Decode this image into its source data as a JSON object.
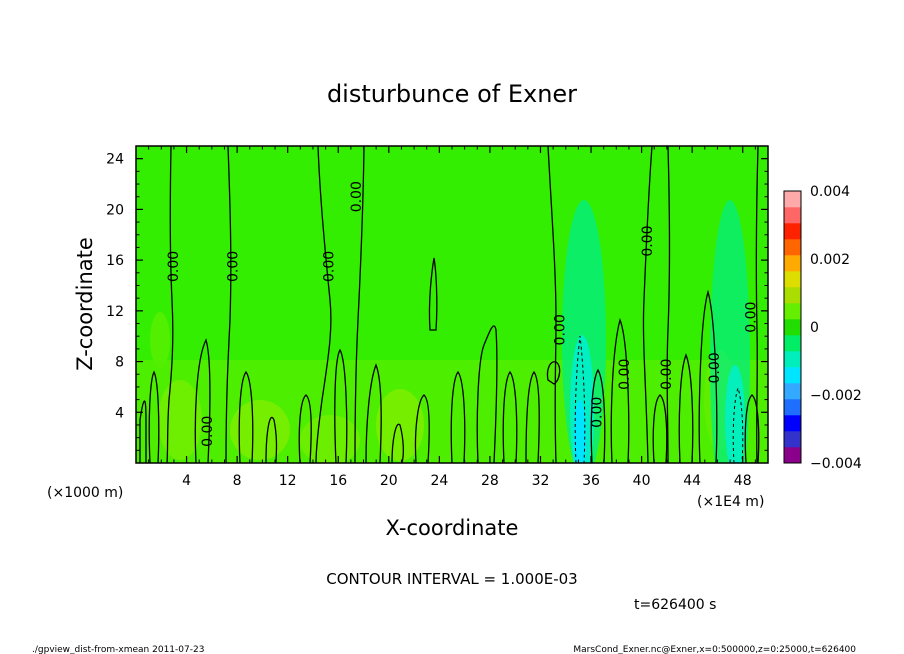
{
  "chart_data": {
    "type": "heatmap",
    "title": "disturbunce of Exner",
    "xlabel": "X-coordinate",
    "ylabel": "Z-coordinate",
    "xlim": [
      0,
      50
    ],
    "ylim": [
      0,
      25
    ],
    "x_ticks": [
      4,
      8,
      12,
      16,
      20,
      24,
      28,
      32,
      36,
      40,
      44,
      48
    ],
    "y_ticks": [
      4,
      8,
      12,
      16,
      20,
      24
    ],
    "x_unit_left": "(×1000 m)",
    "x_unit_right": "(×1E4 m)",
    "colorbar": {
      "range": [
        -0.004,
        0.004
      ],
      "tick_labels": [
        "0.004",
        "0.002",
        "0",
        "−0.002",
        "−0.004"
      ],
      "tick_values": [
        0.004,
        0.002,
        0,
        -0.002,
        -0.004
      ],
      "colors": [
        "#8b008b",
        "#3333cc",
        "#0000ff",
        "#1e6fff",
        "#33aaff",
        "#00e5ff",
        "#00eebb",
        "#00ee66",
        "#22dd00",
        "#66ee00",
        "#aadd00",
        "#dddd00",
        "#ffaa00",
        "#ff6600",
        "#ff2200",
        "#ff6666",
        "#ffaaaa"
      ]
    },
    "contour_interval_text": "CONTOUR INTERVAL = 1.000E-03",
    "contour_labels": [
      {
        "text": "0.00",
        "x": 3.0,
        "z": 15.5
      },
      {
        "text": "0.00",
        "x": 7.7,
        "z": 15.5
      },
      {
        "text": "0.00",
        "x": 15.3,
        "z": 15.5
      },
      {
        "text": "0.00",
        "x": 17.5,
        "z": 21.0
      },
      {
        "text": "0.00",
        "x": 5.7,
        "z": 2.5
      },
      {
        "text": "0.00",
        "x": 33.6,
        "z": 10.5
      },
      {
        "text": "0.00",
        "x": 36.5,
        "z": 4.0
      },
      {
        "text": "0.00",
        "x": 38.7,
        "z": 7.0
      },
      {
        "text": "0.00",
        "x": 40.5,
        "z": 17.5
      },
      {
        "text": "0.00",
        "x": 42.0,
        "z": 7.0
      },
      {
        "text": "0.00",
        "x": 45.8,
        "z": 7.5
      },
      {
        "text": "0.00",
        "x": 48.7,
        "z": 11.5
      }
    ],
    "time_label": "t=626400 s",
    "footer_left": "./gpview_dist-from-xmean  2011-07-23",
    "footer_right": "MarsCond_Exner.nc@Exner,x=0:500000,z=0:25000,t=626400"
  }
}
